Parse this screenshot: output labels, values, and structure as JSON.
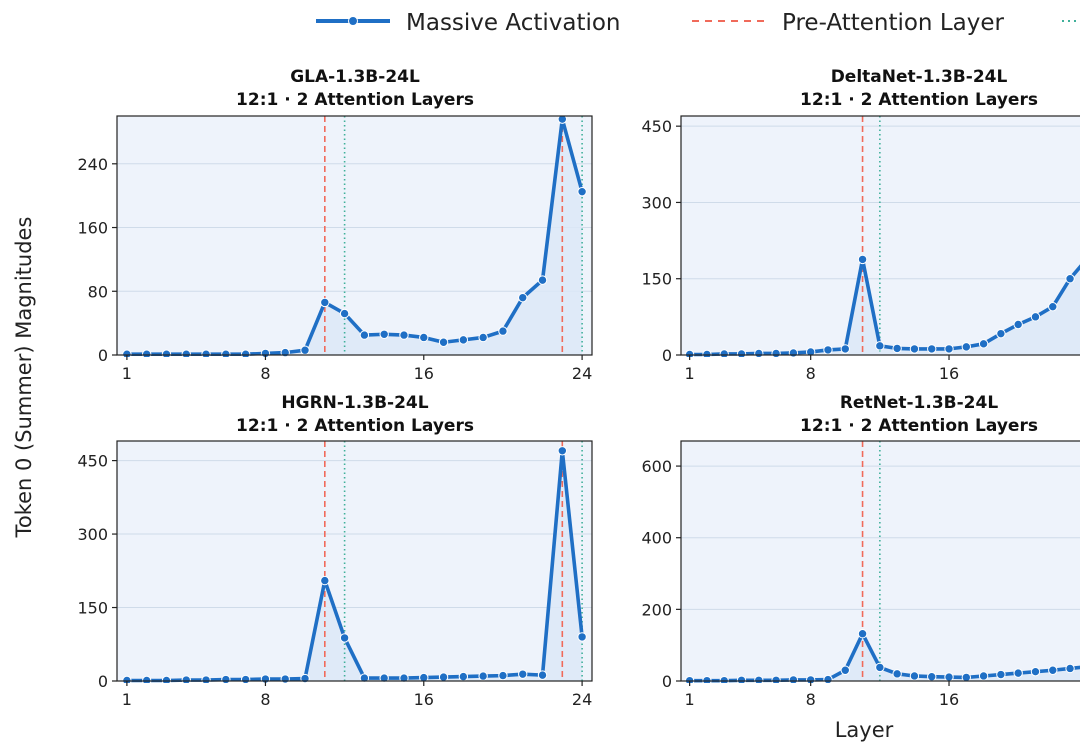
{
  "legend": {
    "entries": [
      "Massive Activation",
      "Pre-Attention Layer",
      ""
    ]
  },
  "figure": {
    "ylabel": "Token 0 (Summer) Magnitudes",
    "xlabel": "Layer"
  },
  "colors": {
    "series": "#1f6fc5",
    "pre_attention": "#f06a5a",
    "attention": "#3fb09a",
    "panel_bg": "#eef3fb",
    "area_fill": "#dce8f7",
    "grid": "#cfdbe9"
  },
  "chart_data": [
    {
      "type": "line",
      "title": "GLA-1.3B-24L",
      "subtitle": "12:1 · 2 Attention Layers",
      "xlabel": "",
      "ylabel": "",
      "xlim": [
        0.5,
        24.5
      ],
      "ylim": [
        0,
        300
      ],
      "xticks": [
        1,
        8,
        16,
        24
      ],
      "yticks": [
        0,
        80,
        160,
        240
      ],
      "x": [
        1,
        2,
        3,
        4,
        5,
        6,
        7,
        8,
        9,
        10,
        11,
        12,
        13,
        14,
        15,
        16,
        17,
        18,
        19,
        20,
        21,
        22,
        23,
        24
      ],
      "series": [
        {
          "name": "Massive Activation",
          "values": [
            1,
            1,
            1,
            1,
            1,
            1,
            1,
            2,
            3,
            6,
            66,
            52,
            25,
            26,
            25,
            22,
            16,
            19,
            22,
            30,
            72,
            94,
            296,
            205
          ]
        }
      ],
      "pre_attention_layers": [
        11,
        23
      ],
      "attention_layers": [
        12,
        24
      ],
      "grid": true
    },
    {
      "type": "line",
      "title": "DeltaNet-1.3B-24L",
      "subtitle": "12:1 · 2 Attention Layers",
      "xlabel": "",
      "ylabel": "",
      "xlim": [
        0.5,
        24.5
      ],
      "ylim": [
        0,
        470
      ],
      "xticks": [
        1,
        8,
        16
      ],
      "yticks": [
        0,
        150,
        300,
        450
      ],
      "x": [
        1,
        2,
        3,
        4,
        5,
        6,
        7,
        8,
        9,
        10,
        11,
        12,
        13,
        14,
        15,
        16,
        17,
        18,
        19,
        20,
        21,
        22,
        23,
        24
      ],
      "series": [
        {
          "name": "Massive Activation",
          "values": [
            1,
            1,
            2,
            2,
            3,
            3,
            4,
            6,
            10,
            12,
            188,
            18,
            13,
            12,
            12,
            12,
            16,
            22,
            42,
            60,
            75,
            95,
            150,
            190
          ]
        }
      ],
      "pre_attention_layers": [
        11
      ],
      "attention_layers": [
        12
      ],
      "grid": true
    },
    {
      "type": "line",
      "title": "HGRN-1.3B-24L",
      "subtitle": "12:1 · 2 Attention Layers",
      "xlabel": "",
      "ylabel": "",
      "xlim": [
        0.5,
        24.5
      ],
      "ylim": [
        0,
        490
      ],
      "xticks": [
        1,
        8,
        16,
        24
      ],
      "yticks": [
        0,
        150,
        300,
        450
      ],
      "x": [
        1,
        2,
        3,
        4,
        5,
        6,
        7,
        8,
        9,
        10,
        11,
        12,
        13,
        14,
        15,
        16,
        17,
        18,
        19,
        20,
        21,
        22,
        23,
        24
      ],
      "series": [
        {
          "name": "Massive Activation",
          "values": [
            1,
            1,
            1,
            2,
            2,
            3,
            3,
            4,
            4,
            5,
            205,
            88,
            6,
            6,
            6,
            7,
            8,
            9,
            10,
            11,
            14,
            12,
            470,
            90
          ]
        }
      ],
      "pre_attention_layers": [
        11,
        23
      ],
      "attention_layers": [
        12,
        24
      ],
      "grid": true
    },
    {
      "type": "line",
      "title": "RetNet-1.3B-24L",
      "subtitle": "12:1 · 2 Attention Layers",
      "xlabel": "",
      "ylabel": "",
      "xlim": [
        0.5,
        24.5
      ],
      "ylim": [
        0,
        670
      ],
      "xticks": [
        1,
        8,
        16
      ],
      "yticks": [
        0,
        200,
        400,
        600
      ],
      "x": [
        1,
        2,
        3,
        4,
        5,
        6,
        7,
        8,
        9,
        10,
        11,
        12,
        13,
        14,
        15,
        16,
        17,
        18,
        19,
        20,
        21,
        22,
        23,
        24
      ],
      "series": [
        {
          "name": "Massive Activation",
          "values": [
            1,
            1,
            1,
            2,
            2,
            2,
            3,
            3,
            4,
            30,
            132,
            38,
            20,
            14,
            12,
            11,
            10,
            14,
            18,
            22,
            26,
            30,
            35,
            40
          ]
        }
      ],
      "pre_attention_layers": [
        11
      ],
      "attention_layers": [
        12
      ],
      "grid": true
    }
  ]
}
